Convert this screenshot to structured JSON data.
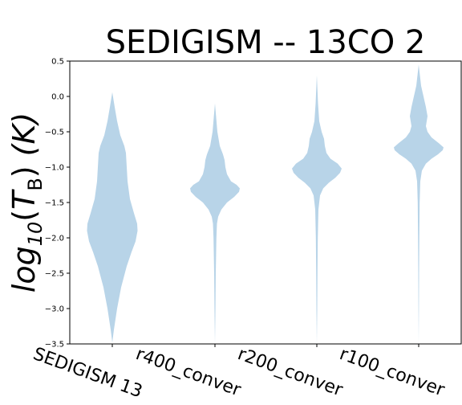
{
  "chart_data": {
    "type": "violin",
    "title": "SEDIGISM -- 13CO 2",
    "ylabel_parts": {
      "func": "log",
      "func_sub": "10",
      "open": "(",
      "var": "T",
      "var_sub": "B",
      "close": ")",
      "unit": "(K)"
    },
    "ylim": [
      -3.5,
      0.5
    ],
    "yticks": [
      0.5,
      0.0,
      -0.5,
      -1.0,
      -1.5,
      -2.0,
      -2.5,
      -3.0,
      -3.5
    ],
    "ytick_labels": [
      "0.5",
      "0.0",
      "−0.5",
      "−1.0",
      "−1.5",
      "−2.0",
      "−2.5",
      "−3.0",
      "−3.5"
    ],
    "categories": [
      "SEDIGISM 13",
      "r400_conver",
      "r200_conver",
      "r100_conver"
    ],
    "color": "#b8d4e8",
    "grid": false,
    "violins": [
      {
        "name": "SEDIGISM 13",
        "min": -3.48,
        "max": 0.06,
        "profile": [
          [
            -3.48,
            0
          ],
          [
            -3.3,
            2
          ],
          [
            -3.0,
            6
          ],
          [
            -2.7,
            11
          ],
          [
            -2.4,
            18
          ],
          [
            -2.2,
            24
          ],
          [
            -2.05,
            29
          ],
          [
            -1.9,
            31.5
          ],
          [
            -1.8,
            31
          ],
          [
            -1.65,
            27
          ],
          [
            -1.45,
            22
          ],
          [
            -1.2,
            19
          ],
          [
            -1.0,
            18
          ],
          [
            -0.8,
            17
          ],
          [
            -0.7,
            15
          ],
          [
            -0.55,
            10
          ],
          [
            -0.35,
            6
          ],
          [
            -0.15,
            3
          ],
          [
            0.06,
            0
          ]
        ]
      },
      {
        "name": "r400_conver",
        "min": -3.5,
        "max": -0.1,
        "profile": [
          [
            -3.5,
            0
          ],
          [
            -3.0,
            0.6
          ],
          [
            -2.5,
            1
          ],
          [
            -2.0,
            1.8
          ],
          [
            -1.8,
            2.5
          ],
          [
            -1.7,
            4
          ],
          [
            -1.6,
            8
          ],
          [
            -1.5,
            15
          ],
          [
            -1.42,
            24
          ],
          [
            -1.35,
            30
          ],
          [
            -1.3,
            31
          ],
          [
            -1.25,
            27
          ],
          [
            -1.2,
            20
          ],
          [
            -1.1,
            15
          ],
          [
            -1.0,
            13
          ],
          [
            -0.9,
            12
          ],
          [
            -0.82,
            10
          ],
          [
            -0.7,
            6
          ],
          [
            -0.5,
            3
          ],
          [
            -0.3,
            1.5
          ],
          [
            -0.1,
            0
          ]
        ]
      },
      {
        "name": "r200_conver",
        "min": -3.5,
        "max": 0.3,
        "profile": [
          [
            -3.5,
            0
          ],
          [
            -3.0,
            0.5
          ],
          [
            -2.5,
            0.8
          ],
          [
            -2.0,
            1.2
          ],
          [
            -1.6,
            2
          ],
          [
            -1.4,
            4
          ],
          [
            -1.3,
            8
          ],
          [
            -1.22,
            15
          ],
          [
            -1.15,
            23
          ],
          [
            -1.08,
            29
          ],
          [
            -1.02,
            31
          ],
          [
            -0.95,
            26
          ],
          [
            -0.88,
            17
          ],
          [
            -0.8,
            12
          ],
          [
            -0.7,
            10
          ],
          [
            -0.6,
            9
          ],
          [
            -0.5,
            6
          ],
          [
            -0.35,
            3
          ],
          [
            -0.1,
            1.5
          ],
          [
            0.3,
            0
          ]
        ]
      },
      {
        "name": "r100_conver",
        "min": -3.5,
        "max": 0.45,
        "profile": [
          [
            -3.5,
            0
          ],
          [
            -3.0,
            0.3
          ],
          [
            -2.5,
            0.5
          ],
          [
            -2.0,
            0.8
          ],
          [
            -1.5,
            1.2
          ],
          [
            -1.2,
            2
          ],
          [
            -1.05,
            4
          ],
          [
            -0.95,
            9
          ],
          [
            -0.88,
            16
          ],
          [
            -0.82,
            24
          ],
          [
            -0.76,
            30
          ],
          [
            -0.72,
            31
          ],
          [
            -0.66,
            25
          ],
          [
            -0.58,
            16
          ],
          [
            -0.5,
            11
          ],
          [
            -0.42,
            9
          ],
          [
            -0.35,
            10
          ],
          [
            -0.28,
            11
          ],
          [
            -0.15,
            9
          ],
          [
            0.0,
            6
          ],
          [
            0.15,
            3
          ],
          [
            0.3,
            1.5
          ],
          [
            0.45,
            0
          ]
        ]
      }
    ]
  }
}
